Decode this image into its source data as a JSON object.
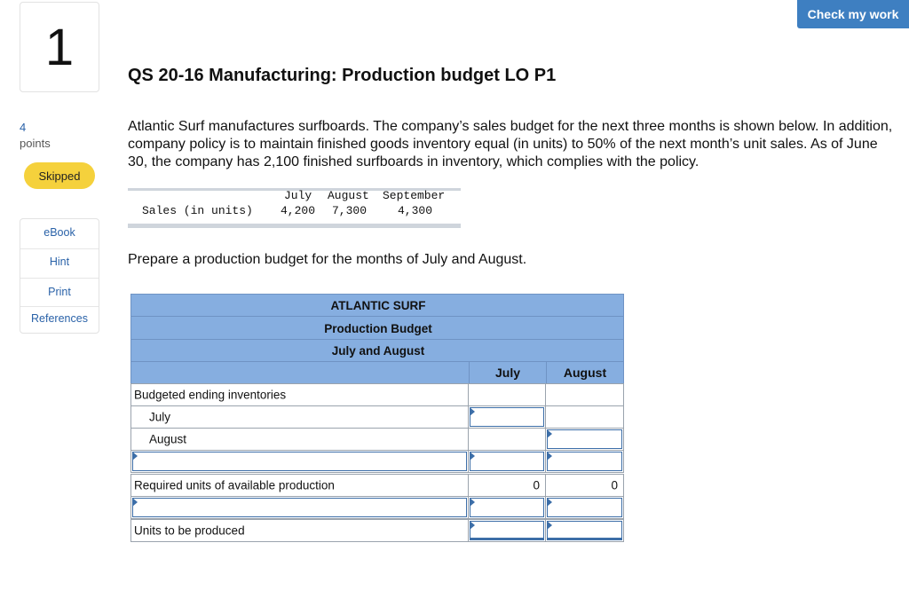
{
  "header": {
    "check_button": "Check my work"
  },
  "question": {
    "number": "1",
    "title": "QS 20-16 Manufacturing: Production budget LO P1",
    "points_value": "4",
    "points_label": "points",
    "status": "Skipped"
  },
  "sidebar": {
    "links": [
      {
        "label": "eBook"
      },
      {
        "label": "Hint"
      },
      {
        "label": "Print"
      },
      {
        "label": "References"
      }
    ]
  },
  "intro": "Atlantic Surf manufactures surfboards. The company’s sales budget for the next three months is shown below. In addition, company policy is to maintain finished goods inventory equal (in units) to 50% of the next month’s unit sales. As of June 30, the company has 2,100 finished surfboards in inventory, which complies with the policy.",
  "sales_table": {
    "headers": [
      "July",
      "August",
      "September"
    ],
    "row_label": "Sales (in units)",
    "values": [
      "4,200",
      "7,300",
      "4,300"
    ]
  },
  "prompt": "Prepare a production budget for the months of July and August.",
  "budget": {
    "title_lines": [
      "ATLANTIC SURF",
      "Production Budget",
      "July and August"
    ],
    "columns": [
      "July",
      "August"
    ],
    "rows": {
      "ending_inventories": "Budgeted ending inventories",
      "july": "July",
      "august": "August",
      "required_units": "Required units of available production",
      "units_produced": "Units to be produced"
    },
    "required_values": [
      "0",
      "0"
    ]
  }
}
